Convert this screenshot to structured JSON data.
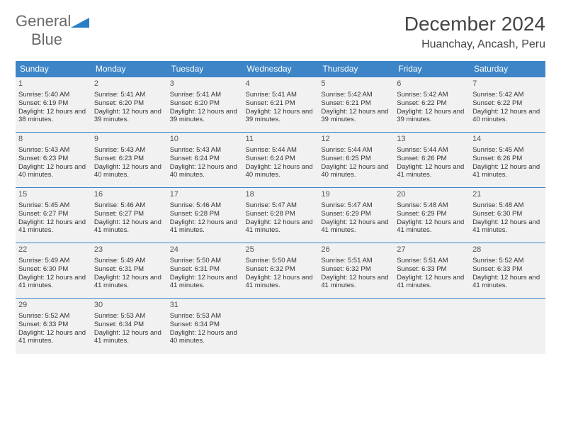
{
  "logo": {
    "text1": "General",
    "text2": "Blue"
  },
  "title": "December 2024",
  "location": "Huanchay, Ancash, Peru",
  "colors": {
    "header_bg": "#3d85c6",
    "header_text": "#ffffff",
    "cell_bg": "#f1f1f1",
    "border": "#3d85c6",
    "logo_gray": "#6a6a6a",
    "logo_blue": "#2a7ec5"
  },
  "weekdays": [
    "Sunday",
    "Monday",
    "Tuesday",
    "Wednesday",
    "Thursday",
    "Friday",
    "Saturday"
  ],
  "cells": [
    {
      "day": "1",
      "sunrise": "Sunrise: 5:40 AM",
      "sunset": "Sunset: 6:19 PM",
      "daylight": "Daylight: 12 hours and 38 minutes."
    },
    {
      "day": "2",
      "sunrise": "Sunrise: 5:41 AM",
      "sunset": "Sunset: 6:20 PM",
      "daylight": "Daylight: 12 hours and 39 minutes."
    },
    {
      "day": "3",
      "sunrise": "Sunrise: 5:41 AM",
      "sunset": "Sunset: 6:20 PM",
      "daylight": "Daylight: 12 hours and 39 minutes."
    },
    {
      "day": "4",
      "sunrise": "Sunrise: 5:41 AM",
      "sunset": "Sunset: 6:21 PM",
      "daylight": "Daylight: 12 hours and 39 minutes."
    },
    {
      "day": "5",
      "sunrise": "Sunrise: 5:42 AM",
      "sunset": "Sunset: 6:21 PM",
      "daylight": "Daylight: 12 hours and 39 minutes."
    },
    {
      "day": "6",
      "sunrise": "Sunrise: 5:42 AM",
      "sunset": "Sunset: 6:22 PM",
      "daylight": "Daylight: 12 hours and 39 minutes."
    },
    {
      "day": "7",
      "sunrise": "Sunrise: 5:42 AM",
      "sunset": "Sunset: 6:22 PM",
      "daylight": "Daylight: 12 hours and 40 minutes."
    },
    {
      "day": "8",
      "sunrise": "Sunrise: 5:43 AM",
      "sunset": "Sunset: 6:23 PM",
      "daylight": "Daylight: 12 hours and 40 minutes."
    },
    {
      "day": "9",
      "sunrise": "Sunrise: 5:43 AM",
      "sunset": "Sunset: 6:23 PM",
      "daylight": "Daylight: 12 hours and 40 minutes."
    },
    {
      "day": "10",
      "sunrise": "Sunrise: 5:43 AM",
      "sunset": "Sunset: 6:24 PM",
      "daylight": "Daylight: 12 hours and 40 minutes."
    },
    {
      "day": "11",
      "sunrise": "Sunrise: 5:44 AM",
      "sunset": "Sunset: 6:24 PM",
      "daylight": "Daylight: 12 hours and 40 minutes."
    },
    {
      "day": "12",
      "sunrise": "Sunrise: 5:44 AM",
      "sunset": "Sunset: 6:25 PM",
      "daylight": "Daylight: 12 hours and 40 minutes."
    },
    {
      "day": "13",
      "sunrise": "Sunrise: 5:44 AM",
      "sunset": "Sunset: 6:26 PM",
      "daylight": "Daylight: 12 hours and 41 minutes."
    },
    {
      "day": "14",
      "sunrise": "Sunrise: 5:45 AM",
      "sunset": "Sunset: 6:26 PM",
      "daylight": "Daylight: 12 hours and 41 minutes."
    },
    {
      "day": "15",
      "sunrise": "Sunrise: 5:45 AM",
      "sunset": "Sunset: 6:27 PM",
      "daylight": "Daylight: 12 hours and 41 minutes."
    },
    {
      "day": "16",
      "sunrise": "Sunrise: 5:46 AM",
      "sunset": "Sunset: 6:27 PM",
      "daylight": "Daylight: 12 hours and 41 minutes."
    },
    {
      "day": "17",
      "sunrise": "Sunrise: 5:46 AM",
      "sunset": "Sunset: 6:28 PM",
      "daylight": "Daylight: 12 hours and 41 minutes."
    },
    {
      "day": "18",
      "sunrise": "Sunrise: 5:47 AM",
      "sunset": "Sunset: 6:28 PM",
      "daylight": "Daylight: 12 hours and 41 minutes."
    },
    {
      "day": "19",
      "sunrise": "Sunrise: 5:47 AM",
      "sunset": "Sunset: 6:29 PM",
      "daylight": "Daylight: 12 hours and 41 minutes."
    },
    {
      "day": "20",
      "sunrise": "Sunrise: 5:48 AM",
      "sunset": "Sunset: 6:29 PM",
      "daylight": "Daylight: 12 hours and 41 minutes."
    },
    {
      "day": "21",
      "sunrise": "Sunrise: 5:48 AM",
      "sunset": "Sunset: 6:30 PM",
      "daylight": "Daylight: 12 hours and 41 minutes."
    },
    {
      "day": "22",
      "sunrise": "Sunrise: 5:49 AM",
      "sunset": "Sunset: 6:30 PM",
      "daylight": "Daylight: 12 hours and 41 minutes."
    },
    {
      "day": "23",
      "sunrise": "Sunrise: 5:49 AM",
      "sunset": "Sunset: 6:31 PM",
      "daylight": "Daylight: 12 hours and 41 minutes."
    },
    {
      "day": "24",
      "sunrise": "Sunrise: 5:50 AM",
      "sunset": "Sunset: 6:31 PM",
      "daylight": "Daylight: 12 hours and 41 minutes."
    },
    {
      "day": "25",
      "sunrise": "Sunrise: 5:50 AM",
      "sunset": "Sunset: 6:32 PM",
      "daylight": "Daylight: 12 hours and 41 minutes."
    },
    {
      "day": "26",
      "sunrise": "Sunrise: 5:51 AM",
      "sunset": "Sunset: 6:32 PM",
      "daylight": "Daylight: 12 hours and 41 minutes."
    },
    {
      "day": "27",
      "sunrise": "Sunrise: 5:51 AM",
      "sunset": "Sunset: 6:33 PM",
      "daylight": "Daylight: 12 hours and 41 minutes."
    },
    {
      "day": "28",
      "sunrise": "Sunrise: 5:52 AM",
      "sunset": "Sunset: 6:33 PM",
      "daylight": "Daylight: 12 hours and 41 minutes."
    },
    {
      "day": "29",
      "sunrise": "Sunrise: 5:52 AM",
      "sunset": "Sunset: 6:33 PM",
      "daylight": "Daylight: 12 hours and 41 minutes."
    },
    {
      "day": "30",
      "sunrise": "Sunrise: 5:53 AM",
      "sunset": "Sunset: 6:34 PM",
      "daylight": "Daylight: 12 hours and 41 minutes."
    },
    {
      "day": "31",
      "sunrise": "Sunrise: 5:53 AM",
      "sunset": "Sunset: 6:34 PM",
      "daylight": "Daylight: 12 hours and 40 minutes."
    }
  ]
}
